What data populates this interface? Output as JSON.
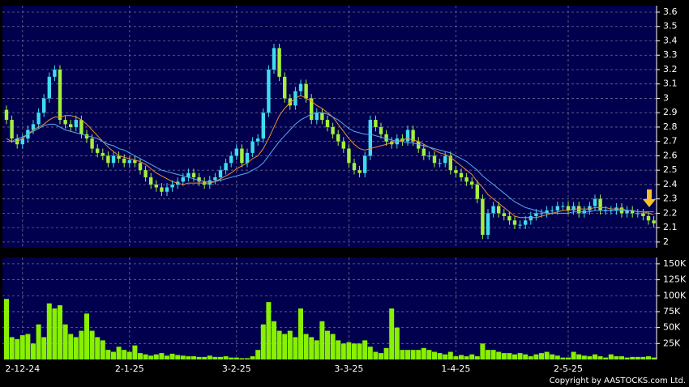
{
  "chart_data": [
    {
      "type": "candlestick",
      "up_color": "#3fdcf0",
      "down_color": "#a4ef3c",
      "grid": true,
      "ylim": [
        1.96,
        3.645
      ],
      "yticks": [
        2,
        2.1,
        2.2,
        2.3,
        2.4,
        2.5,
        2.6,
        2.7,
        2.8,
        2.9,
        3,
        3.1,
        3.2,
        3.3,
        3.4,
        3.5,
        3.6
      ],
      "open": [
        2.92,
        2.85,
        2.72,
        2.68,
        2.72,
        2.78,
        2.82,
        2.9,
        3.0,
        3.15,
        3.2,
        2.85,
        2.82,
        2.8,
        2.85,
        2.75,
        2.72,
        2.65,
        2.62,
        2.6,
        2.55,
        2.6,
        2.58,
        2.55,
        2.57,
        2.55,
        2.5,
        2.45,
        2.4,
        2.38,
        2.35,
        2.38,
        2.4,
        2.42,
        2.45,
        2.48,
        2.45,
        2.42,
        2.4,
        2.43,
        2.45,
        2.5,
        2.55,
        2.6,
        2.65,
        2.55,
        2.62,
        2.7,
        2.72,
        2.9,
        3.2,
        3.35,
        3.15,
        3.0,
        2.95,
        3.05,
        3.1,
        3.0,
        2.85,
        2.9,
        2.85,
        2.8,
        2.75,
        2.7,
        2.65,
        2.55,
        2.5,
        2.48,
        2.6,
        2.85,
        2.8,
        2.75,
        2.7,
        2.68,
        2.72,
        2.7,
        2.78,
        2.7,
        2.65,
        2.6,
        2.6,
        2.55,
        2.55,
        2.6,
        2.5,
        2.48,
        2.45,
        2.42,
        2.4,
        2.3,
        2.05,
        2.2,
        2.25,
        2.2,
        2.18,
        2.15,
        2.12,
        2.12,
        2.15,
        2.18,
        2.2,
        2.2,
        2.22,
        2.22,
        2.25,
        2.25,
        2.22,
        2.25,
        2.2,
        2.22,
        2.25,
        2.3,
        2.22,
        2.22,
        2.22,
        2.24,
        2.2,
        2.22,
        2.2,
        2.2,
        2.18,
        2.15
      ],
      "high": [
        2.95,
        2.88,
        2.75,
        2.75,
        2.81,
        2.85,
        2.93,
        3.03,
        3.18,
        3.23,
        3.23,
        2.88,
        2.85,
        2.88,
        2.88,
        2.78,
        2.75,
        2.68,
        2.65,
        2.63,
        2.63,
        2.63,
        2.61,
        2.6,
        2.6,
        2.58,
        2.53,
        2.48,
        2.43,
        2.41,
        2.41,
        2.43,
        2.45,
        2.48,
        2.51,
        2.51,
        2.48,
        2.45,
        2.46,
        2.48,
        2.53,
        2.58,
        2.63,
        2.68,
        2.68,
        2.65,
        2.73,
        2.75,
        2.93,
        3.23,
        3.38,
        3.38,
        3.18,
        3.03,
        3.08,
        3.13,
        3.13,
        3.03,
        2.93,
        2.93,
        2.88,
        2.83,
        2.78,
        2.73,
        2.68,
        2.58,
        2.53,
        2.63,
        2.88,
        2.88,
        2.83,
        2.78,
        2.73,
        2.75,
        2.75,
        2.81,
        2.81,
        2.73,
        2.68,
        2.63,
        2.63,
        2.58,
        2.63,
        2.63,
        2.53,
        2.51,
        2.48,
        2.45,
        2.43,
        2.33,
        2.23,
        2.28,
        2.28,
        2.23,
        2.21,
        2.18,
        2.15,
        2.18,
        2.21,
        2.23,
        2.23,
        2.25,
        2.25,
        2.28,
        2.28,
        2.28,
        2.28,
        2.28,
        2.25,
        2.28,
        2.33,
        2.33,
        2.25,
        2.25,
        2.27,
        2.27,
        2.25,
        2.25,
        2.23,
        2.23,
        2.21,
        2.18
      ],
      "low": [
        2.82,
        2.69,
        2.65,
        2.65,
        2.69,
        2.75,
        2.79,
        2.87,
        2.97,
        3.12,
        2.82,
        2.79,
        2.77,
        2.77,
        2.72,
        2.69,
        2.62,
        2.59,
        2.57,
        2.52,
        2.52,
        2.55,
        2.52,
        2.52,
        2.52,
        2.47,
        2.42,
        2.37,
        2.35,
        2.32,
        2.32,
        2.35,
        2.37,
        2.39,
        2.42,
        2.42,
        2.39,
        2.37,
        2.37,
        2.4,
        2.42,
        2.47,
        2.52,
        2.57,
        2.52,
        2.52,
        2.59,
        2.67,
        2.69,
        2.87,
        3.17,
        3.12,
        2.97,
        2.92,
        2.92,
        3.02,
        2.97,
        2.82,
        2.82,
        2.82,
        2.77,
        2.72,
        2.67,
        2.62,
        2.52,
        2.47,
        2.45,
        2.45,
        2.57,
        2.77,
        2.72,
        2.67,
        2.65,
        2.65,
        2.67,
        2.67,
        2.67,
        2.62,
        2.57,
        2.57,
        2.52,
        2.52,
        2.52,
        2.47,
        2.45,
        2.42,
        2.39,
        2.37,
        2.27,
        2.02,
        2.02,
        2.17,
        2.17,
        2.15,
        2.12,
        2.09,
        2.09,
        2.09,
        2.12,
        2.15,
        2.17,
        2.17,
        2.19,
        2.19,
        2.22,
        2.19,
        2.19,
        2.17,
        2.17,
        2.19,
        2.22,
        2.19,
        2.19,
        2.19,
        2.19,
        2.17,
        2.17,
        2.17,
        2.17,
        2.15,
        2.12,
        2.1
      ],
      "close": [
        2.85,
        2.72,
        2.68,
        2.72,
        2.78,
        2.82,
        2.9,
        3.0,
        3.15,
        3.2,
        2.85,
        2.82,
        2.8,
        2.85,
        2.75,
        2.72,
        2.65,
        2.62,
        2.6,
        2.55,
        2.6,
        2.58,
        2.55,
        2.57,
        2.55,
        2.5,
        2.45,
        2.4,
        2.38,
        2.35,
        2.38,
        2.4,
        2.42,
        2.45,
        2.48,
        2.45,
        2.42,
        2.4,
        2.43,
        2.45,
        2.5,
        2.55,
        2.6,
        2.65,
        2.55,
        2.62,
        2.7,
        2.72,
        2.9,
        3.2,
        3.35,
        3.15,
        3.0,
        2.95,
        3.05,
        3.1,
        3.0,
        2.85,
        2.9,
        2.85,
        2.8,
        2.75,
        2.7,
        2.65,
        2.55,
        2.5,
        2.48,
        2.6,
        2.85,
        2.8,
        2.75,
        2.7,
        2.68,
        2.72,
        2.7,
        2.78,
        2.7,
        2.65,
        2.6,
        2.6,
        2.55,
        2.55,
        2.6,
        2.5,
        2.48,
        2.45,
        2.42,
        2.4,
        2.3,
        2.05,
        2.2,
        2.25,
        2.2,
        2.18,
        2.15,
        2.12,
        2.12,
        2.15,
        2.18,
        2.2,
        2.2,
        2.22,
        2.22,
        2.25,
        2.25,
        2.22,
        2.25,
        2.2,
        2.22,
        2.25,
        2.3,
        2.22,
        2.22,
        2.22,
        2.24,
        2.2,
        2.22,
        2.2,
        2.2,
        2.18,
        2.15,
        2.13
      ],
      "lines": [
        {
          "color": "#f08a30",
          "values": [
            2.72,
            2.7,
            2.7,
            2.72,
            2.75,
            2.78,
            2.8,
            2.82,
            2.85,
            2.87,
            2.87,
            2.88,
            2.88,
            2.87,
            2.85,
            2.82,
            2.78,
            2.74,
            2.7,
            2.66,
            2.63,
            2.6,
            2.59,
            2.58,
            2.57,
            2.56,
            2.54,
            2.51,
            2.48,
            2.46,
            2.44,
            2.42,
            2.41,
            2.4,
            2.41,
            2.41,
            2.41,
            2.41,
            2.41,
            2.42,
            2.44,
            2.46,
            2.48,
            2.51,
            2.53,
            2.55,
            2.58,
            2.6,
            2.65,
            2.72,
            2.8,
            2.88,
            2.93,
            2.97,
            3.0,
            3.02,
            3.0,
            2.98,
            2.95,
            2.93,
            2.9,
            2.87,
            2.82,
            2.77,
            2.72,
            2.68,
            2.65,
            2.64,
            2.65,
            2.66,
            2.67,
            2.68,
            2.69,
            2.7,
            2.71,
            2.72,
            2.71,
            2.7,
            2.68,
            2.66,
            2.64,
            2.62,
            2.61,
            2.59,
            2.56,
            2.53,
            2.5,
            2.47,
            2.42,
            2.38,
            2.33,
            2.3,
            2.27,
            2.24,
            2.21,
            2.18,
            2.17,
            2.17,
            2.17,
            2.17,
            2.18,
            2.19,
            2.2,
            2.21,
            2.22,
            2.22,
            2.23,
            2.23,
            2.23,
            2.23,
            2.24,
            2.24,
            2.24,
            2.23,
            2.23,
            2.23,
            2.22,
            2.22,
            2.21,
            2.21,
            2.2,
            2.19
          ]
        },
        {
          "color": "#5aa8f0",
          "values": [
            2.7,
            2.7,
            2.72,
            2.73,
            2.75,
            2.77,
            2.79,
            2.81,
            2.82,
            2.82,
            2.8,
            2.78,
            2.77,
            2.76,
            2.75,
            2.74,
            2.73,
            2.72,
            2.7,
            2.68,
            2.67,
            2.65,
            2.64,
            2.62,
            2.6,
            2.58,
            2.56,
            2.54,
            2.52,
            2.5,
            2.49,
            2.48,
            2.47,
            2.46,
            2.45,
            2.44,
            2.43,
            2.42,
            2.42,
            2.42,
            2.43,
            2.44,
            2.45,
            2.46,
            2.47,
            2.48,
            2.5,
            2.52,
            2.55,
            2.6,
            2.65,
            2.7,
            2.74,
            2.78,
            2.82,
            2.85,
            2.87,
            2.89,
            2.9,
            2.9,
            2.89,
            2.87,
            2.85,
            2.82,
            2.79,
            2.77,
            2.76,
            2.75,
            2.75,
            2.74,
            2.73,
            2.72,
            2.71,
            2.7,
            2.7,
            2.69,
            2.69,
            2.68,
            2.67,
            2.66,
            2.65,
            2.64,
            2.63,
            2.62,
            2.6,
            2.58,
            2.56,
            2.53,
            2.5,
            2.46,
            2.43,
            2.4,
            2.37,
            2.34,
            2.31,
            2.28,
            2.26,
            2.24,
            2.23,
            2.22,
            2.21,
            2.2,
            2.2,
            2.2,
            2.2,
            2.2,
            2.21,
            2.21,
            2.21,
            2.21,
            2.22,
            2.22,
            2.22,
            2.22,
            2.22,
            2.22,
            2.22,
            2.22,
            2.21,
            2.21,
            2.21,
            2.21
          ]
        }
      ]
    },
    {
      "type": "bar",
      "color": "#88f000",
      "grid": true,
      "ylim": [
        0,
        160000
      ],
      "yticks": [
        {
          "value": 25000,
          "label": "25K"
        },
        {
          "value": 50000,
          "label": "50K"
        },
        {
          "value": 75000,
          "label": "75K"
        },
        {
          "value": 100000,
          "label": "100K"
        },
        {
          "value": 125000,
          "label": "125K"
        },
        {
          "value": 150000,
          "label": "150K"
        }
      ],
      "categories": [
        null,
        null,
        null,
        "2-12-24",
        null,
        null,
        null,
        null,
        null,
        null,
        null,
        null,
        null,
        null,
        null,
        null,
        null,
        null,
        null,
        null,
        null,
        null,
        null,
        "2-1-25",
        null,
        null,
        null,
        null,
        null,
        null,
        null,
        null,
        null,
        null,
        null,
        null,
        null,
        null,
        null,
        null,
        null,
        null,
        null,
        "3-2-25",
        null,
        null,
        null,
        null,
        null,
        null,
        null,
        null,
        null,
        null,
        null,
        null,
        null,
        null,
        null,
        null,
        null,
        null,
        null,
        null,
        "3-3-25",
        null,
        null,
        null,
        null,
        null,
        null,
        null,
        null,
        null,
        null,
        null,
        null,
        null,
        null,
        null,
        null,
        null,
        null,
        null,
        "1-4-25",
        null,
        null,
        null,
        null,
        null,
        null,
        null,
        null,
        null,
        null,
        null,
        null,
        null,
        null,
        null,
        null,
        null,
        null,
        null,
        null,
        "2-5-25",
        null,
        null,
        null,
        null,
        null,
        null,
        null,
        null,
        null,
        null,
        null,
        null,
        null,
        null,
        null,
        null
      ],
      "values": [
        95000,
        35000,
        32000,
        38000,
        40000,
        25000,
        55000,
        35000,
        88000,
        80000,
        85000,
        55000,
        40000,
        35000,
        45000,
        72000,
        45000,
        35000,
        30000,
        15000,
        12000,
        20000,
        15000,
        12000,
        22000,
        10000,
        8000,
        6000,
        8000,
        10000,
        6000,
        9000,
        7000,
        6000,
        5000,
        5000,
        4000,
        4000,
        6000,
        4000,
        4000,
        5000,
        3000,
        3000,
        2000,
        2000,
        5000,
        15000,
        55000,
        90000,
        60000,
        45000,
        40000,
        45000,
        35000,
        80000,
        40000,
        35000,
        30000,
        60000,
        45000,
        40000,
        30000,
        25000,
        27000,
        25000,
        25000,
        30000,
        20000,
        12000,
        10000,
        18000,
        80000,
        50000,
        15000,
        15000,
        15000,
        15000,
        18000,
        15000,
        12000,
        10000,
        8000,
        12000,
        5000,
        7000,
        5000,
        8000,
        5000,
        25000,
        15000,
        15000,
        12000,
        10000,
        10000,
        8000,
        10000,
        8000,
        5000,
        8000,
        10000,
        12000,
        8000,
        6000,
        3000,
        3000,
        12000,
        8000,
        6000,
        5000,
        8000,
        5000,
        3000,
        8000,
        5000,
        5000,
        3000,
        4000,
        4000,
        4000,
        5000,
        3000
      ]
    }
  ],
  "copyright": "Copyright by AASTOCKS.com Ltd."
}
